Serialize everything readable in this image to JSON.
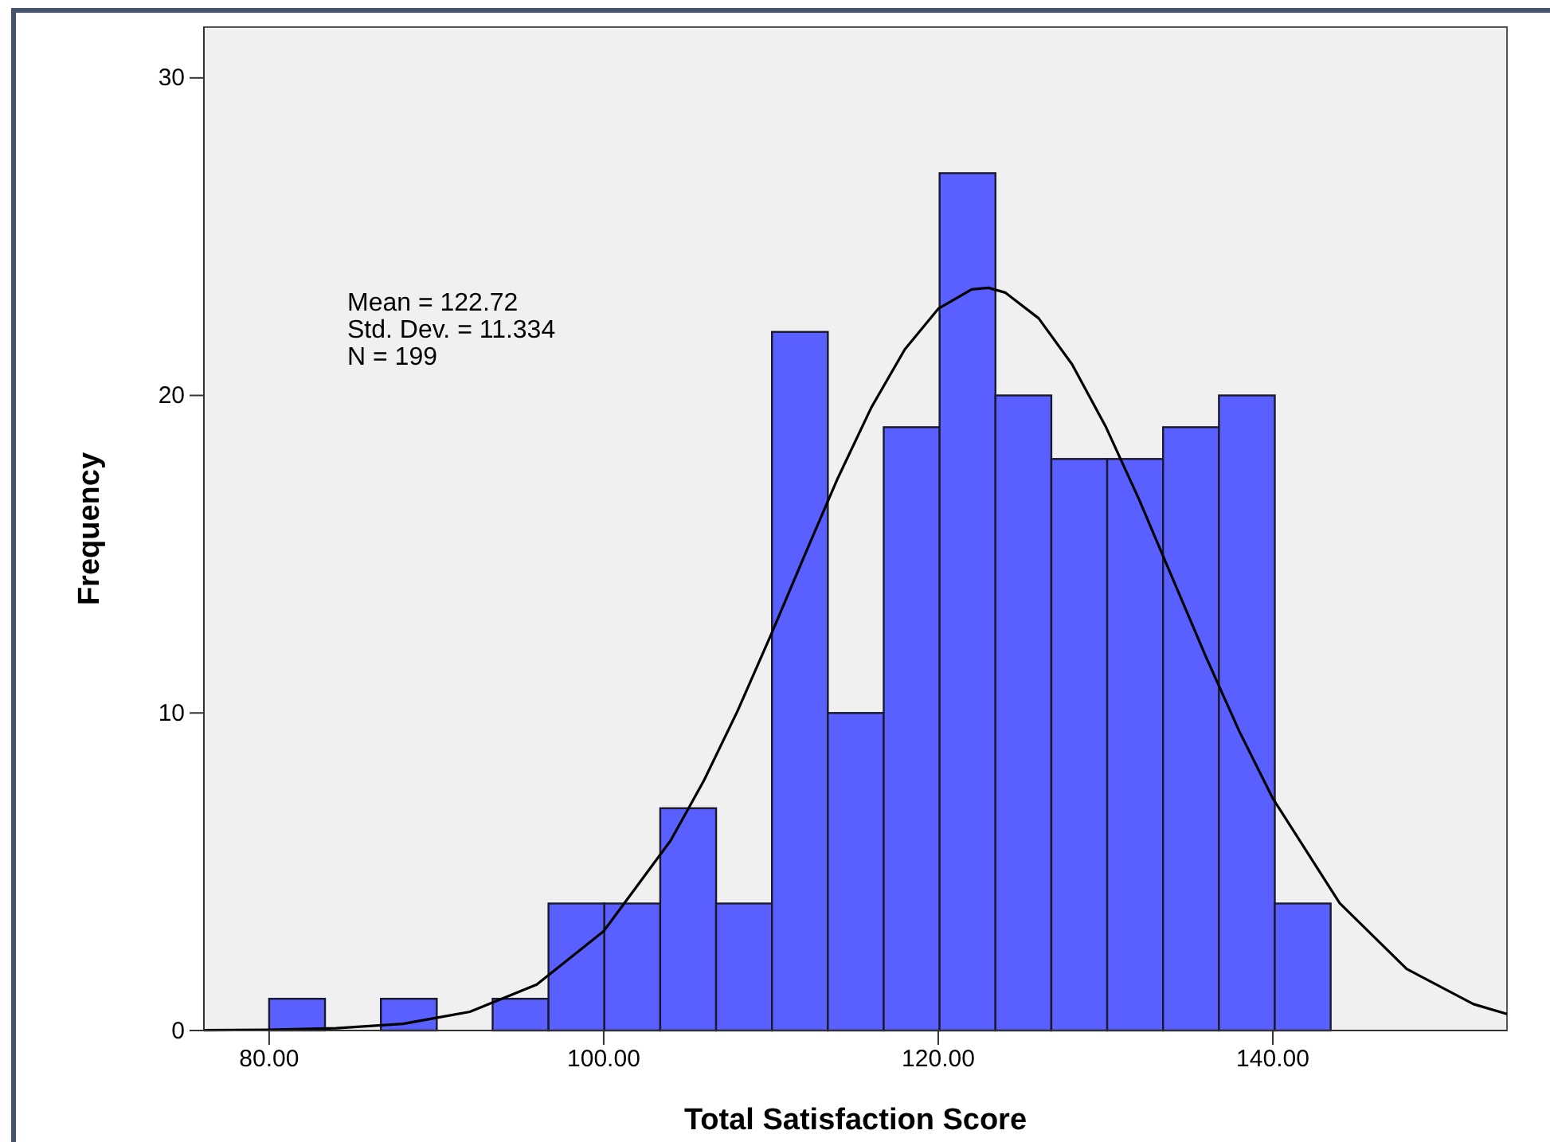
{
  "chart_data": {
    "type": "histogram",
    "xlabel": "Total Satisfaction Score",
    "ylabel": "Frequency",
    "annotations": [
      "Mean = 122.72",
      "Std. Dev. = 11.334",
      "N = 199"
    ],
    "bins": [
      80,
      83.34,
      86.68,
      90.02,
      93.36,
      96.7,
      100.04,
      103.38,
      106.72,
      110.06,
      113.4,
      116.74,
      120.08,
      123.42,
      126.76,
      130.1,
      133.44,
      136.78,
      140.12,
      143.46
    ],
    "values": [
      1,
      0,
      1,
      0,
      1,
      4,
      4,
      7,
      4,
      22,
      10,
      19,
      27,
      20,
      18,
      18,
      19,
      20,
      4
    ],
    "color": "#5a5fff",
    "series": [
      {
        "type": "line",
        "color": "#000000",
        "x": [
          76.1,
          80,
          84,
          88,
          92,
          96,
          100,
          104,
          106,
          108,
          110,
          112,
          114,
          116,
          118,
          120,
          122,
          123,
          124,
          126,
          128,
          130,
          132,
          134,
          136,
          138,
          140,
          144,
          148,
          152,
          154
        ],
        "values": [
          0.01,
          0.02,
          0.07,
          0.21,
          0.59,
          1.45,
          3.13,
          5.98,
          7.88,
          10.06,
          12.46,
          14.95,
          17.4,
          19.62,
          21.45,
          22.73,
          23.34,
          23.39,
          23.24,
          22.43,
          20.98,
          19.03,
          16.73,
          14.25,
          11.77,
          9.42,
          7.31,
          4.01,
          1.94,
          0.83,
          0.52
        ]
      }
    ],
    "marker": "none",
    "line_style": "solid",
    "xlim": [
      76.1,
      154
    ],
    "ylim": [
      0,
      31.6
    ],
    "xticks": [
      {
        "value": 80,
        "label": "80.00"
      },
      {
        "value": 100,
        "label": "100.00"
      },
      {
        "value": 120,
        "label": "120.00"
      },
      {
        "value": 140,
        "label": "140.00"
      }
    ],
    "yticks": [
      0,
      10,
      20,
      30
    ]
  }
}
